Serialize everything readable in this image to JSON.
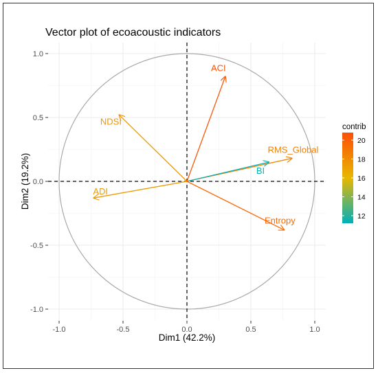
{
  "chart_data": {
    "type": "scatter",
    "subtype": "pca-variable-correlation-circle",
    "title": "Vector plot of ecoacoustic indicators",
    "xlabel": "Dim1 (42.2%)",
    "ylabel": "Dim2 (19.2%)",
    "xlim": [
      -1.0,
      1.0
    ],
    "ylim": [
      -1.0,
      1.0
    ],
    "x_ticks": [
      -1.0,
      -0.5,
      0.0,
      0.5,
      1.0
    ],
    "x_tick_labels": [
      "-1.0",
      "-0.5",
      "0.0",
      "0.5",
      "1.0"
    ],
    "y_ticks": [
      -1.0,
      -0.5,
      0.0,
      0.5,
      1.0
    ],
    "y_tick_labels": [
      "-1.0",
      "-0.5",
      "0.0",
      "0.5",
      "1.0"
    ],
    "grid": true,
    "unit_circle": true,
    "reference_lines": "dashed at x=0 and y=0",
    "vectors": [
      {
        "label": "ACI",
        "x": 0.3,
        "y": 0.82,
        "contrib": 20.5
      },
      {
        "label": "NDSI",
        "x": -0.53,
        "y": 0.52,
        "contrib": 17.5
      },
      {
        "label": "RMS_Global",
        "x": 0.82,
        "y": 0.18,
        "contrib": 18.5
      },
      {
        "label": "BI",
        "x": 0.64,
        "y": 0.15,
        "contrib": 11.5
      },
      {
        "label": "ADI",
        "x": -0.73,
        "y": -0.13,
        "contrib": 17.3
      },
      {
        "label": "Entropy",
        "x": 0.76,
        "y": -0.38,
        "contrib": 19.5
      }
    ],
    "legend": {
      "title": "contrib",
      "placement": "right",
      "range": [
        11.2,
        20.8
      ],
      "ticks": [
        12,
        14,
        16,
        18,
        20
      ],
      "tick_labels": [
        "12",
        "14",
        "16",
        "18",
        "20"
      ],
      "colors": [
        "#00AFBB",
        "#E7B800",
        "#FC4E07"
      ]
    }
  }
}
